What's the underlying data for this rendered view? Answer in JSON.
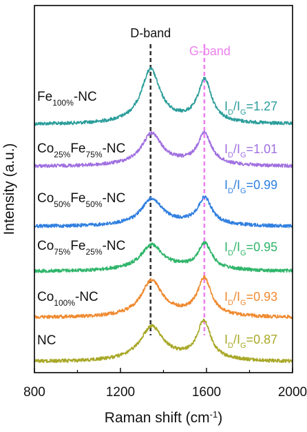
{
  "chart_data": {
    "type": "line",
    "xlabel": "Raman shift (cm",
    "xlabel_sup": "-1",
    "xlabel_tail": ")",
    "ylabel": "Intensity (a.u.)",
    "xlim": [
      800,
      2000
    ],
    "xticks": [
      800,
      1200,
      1600,
      2000
    ],
    "y_ticks_shown": false,
    "grid": false,
    "reference_lines": [
      {
        "name": "D-band",
        "x": 1340,
        "color": "#333333",
        "style": "dashed"
      },
      {
        "name": "G-band",
        "x": 1590,
        "color": "#ee82ee",
        "style": "dashed"
      }
    ],
    "series": [
      {
        "name_parts": [
          [
            "Fe",
            ""
          ],
          [
            "100%",
            "sub"
          ],
          [
            "-NC",
            ""
          ]
        ],
        "ratio": "1.27",
        "color": "#2a9d9a",
        "peak_d_x": 1340,
        "peak_d_height": 1.0,
        "peak_g_x": 1592,
        "peak_g_height": 0.8,
        "d_width": 58
      },
      {
        "name_parts": [
          [
            "Co",
            ""
          ],
          [
            "25%",
            "sub"
          ],
          [
            "Fe",
            ""
          ],
          [
            "75%",
            "sub"
          ],
          [
            "-NC",
            ""
          ]
        ],
        "ratio": "1.01",
        "color": "#a070e0",
        "peak_d_x": 1345,
        "peak_d_height": 0.58,
        "peak_g_x": 1590,
        "peak_g_height": 0.58,
        "d_width": 62
      },
      {
        "name_parts": [
          [
            "Co",
            ""
          ],
          [
            "50%",
            "sub"
          ],
          [
            "Fe",
            ""
          ],
          [
            "50%",
            "sub"
          ],
          [
            "-NC",
            ""
          ]
        ],
        "ratio": "0.99",
        "color": "#2f7fe0",
        "peak_d_x": 1345,
        "peak_d_height": 0.48,
        "peak_g_x": 1592,
        "peak_g_height": 0.5,
        "d_width": 64
      },
      {
        "name_parts": [
          [
            "Co",
            ""
          ],
          [
            "75%",
            "sub"
          ],
          [
            "Fe",
            ""
          ],
          [
            "25%",
            "sub"
          ],
          [
            "-NC",
            ""
          ]
        ],
        "ratio": "0.95",
        "color": "#2fb56a",
        "peak_d_x": 1345,
        "peak_d_height": 0.46,
        "peak_g_x": 1592,
        "peak_g_height": 0.48,
        "d_width": 66
      },
      {
        "name_parts": [
          [
            "Co",
            ""
          ],
          [
            "100%",
            "sub"
          ],
          [
            "-NC",
            ""
          ]
        ],
        "ratio": "0.93",
        "color": "#f08a30",
        "peak_d_x": 1345,
        "peak_d_height": 0.66,
        "peak_g_x": 1590,
        "peak_g_height": 0.7,
        "d_width": 64
      },
      {
        "name_parts": [
          [
            "NC",
            ""
          ]
        ],
        "ratio": "0.87",
        "color": "#a8a828",
        "peak_d_x": 1345,
        "peak_d_height": 0.62,
        "peak_g_x": 1588,
        "peak_g_height": 0.72,
        "d_width": 70
      }
    ],
    "ratio_label_parts": [
      [
        "I",
        ""
      ],
      [
        "D",
        "sub"
      ],
      [
        "/I",
        ""
      ],
      [
        "G",
        "sub"
      ],
      [
        "=",
        ""
      ]
    ]
  }
}
